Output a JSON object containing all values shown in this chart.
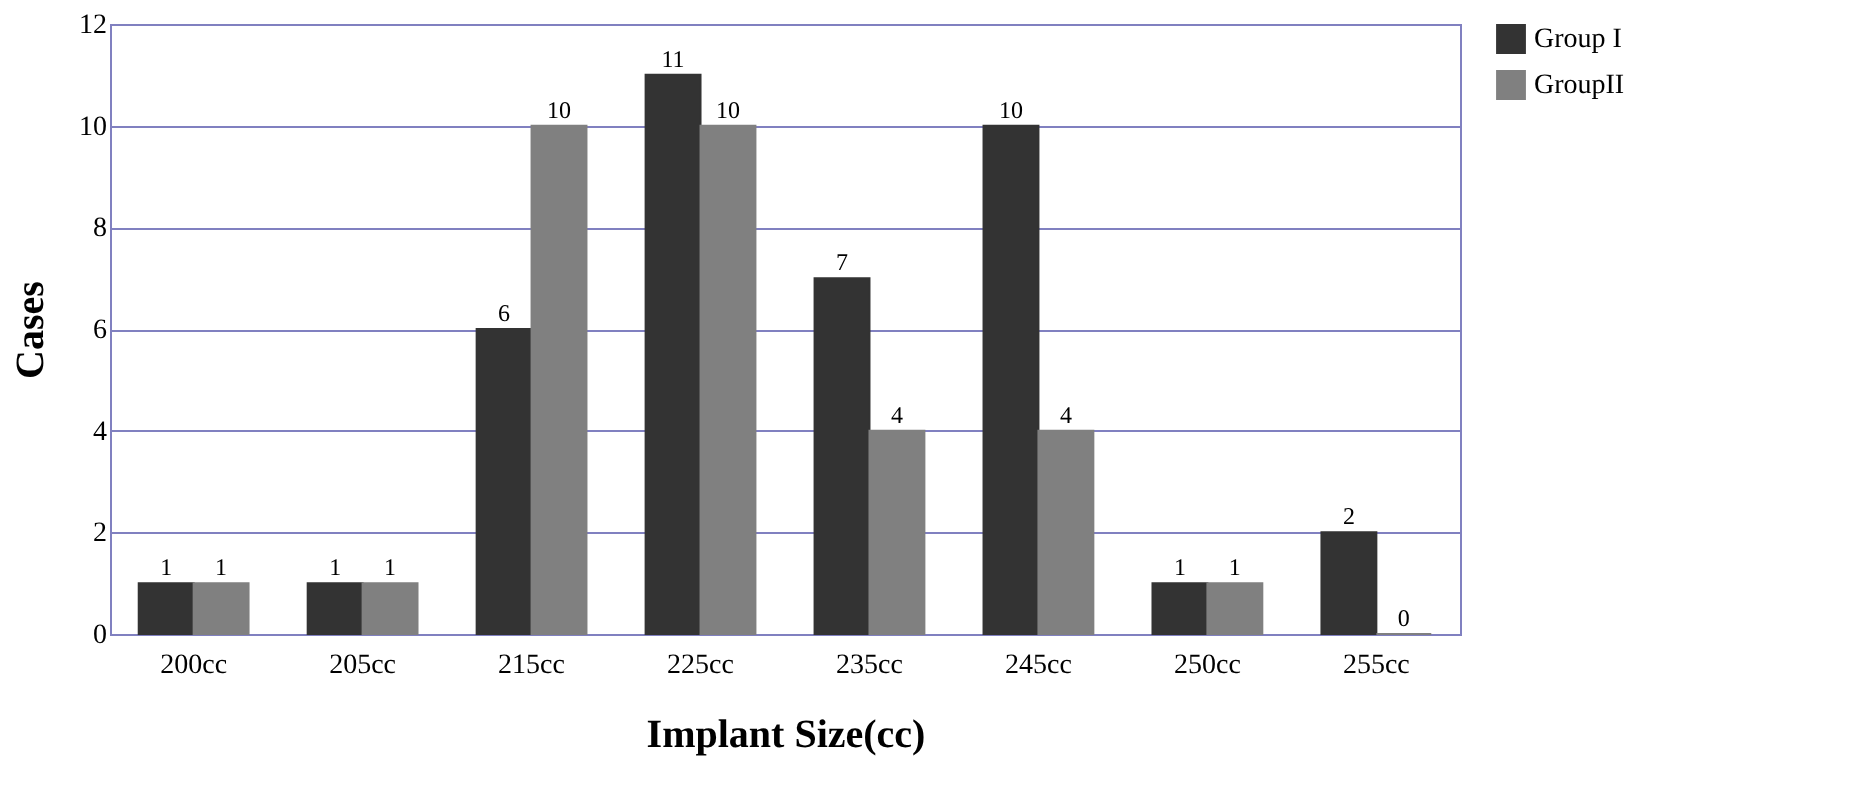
{
  "chart_data": {
    "type": "bar",
    "xlabel": "Implant Size(cc)",
    "ylabel": "Cases",
    "categories": [
      "200cc",
      "205cc",
      "215cc",
      "225cc",
      "235cc",
      "245cc",
      "250cc",
      "255cc"
    ],
    "series": [
      {
        "name": "Group I",
        "color": "#333333",
        "values": [
          1,
          1,
          6,
          11,
          7,
          10,
          1,
          2
        ]
      },
      {
        "name": "GroupII",
        "color": "#808080",
        "values": [
          1,
          1,
          10,
          10,
          4,
          4,
          1,
          0
        ]
      }
    ],
    "ylim": [
      0,
      12
    ],
    "yticks": [
      0,
      2,
      4,
      6,
      8,
      10,
      12
    ],
    "grid": "y",
    "legend": "right",
    "data_labels": true
  }
}
